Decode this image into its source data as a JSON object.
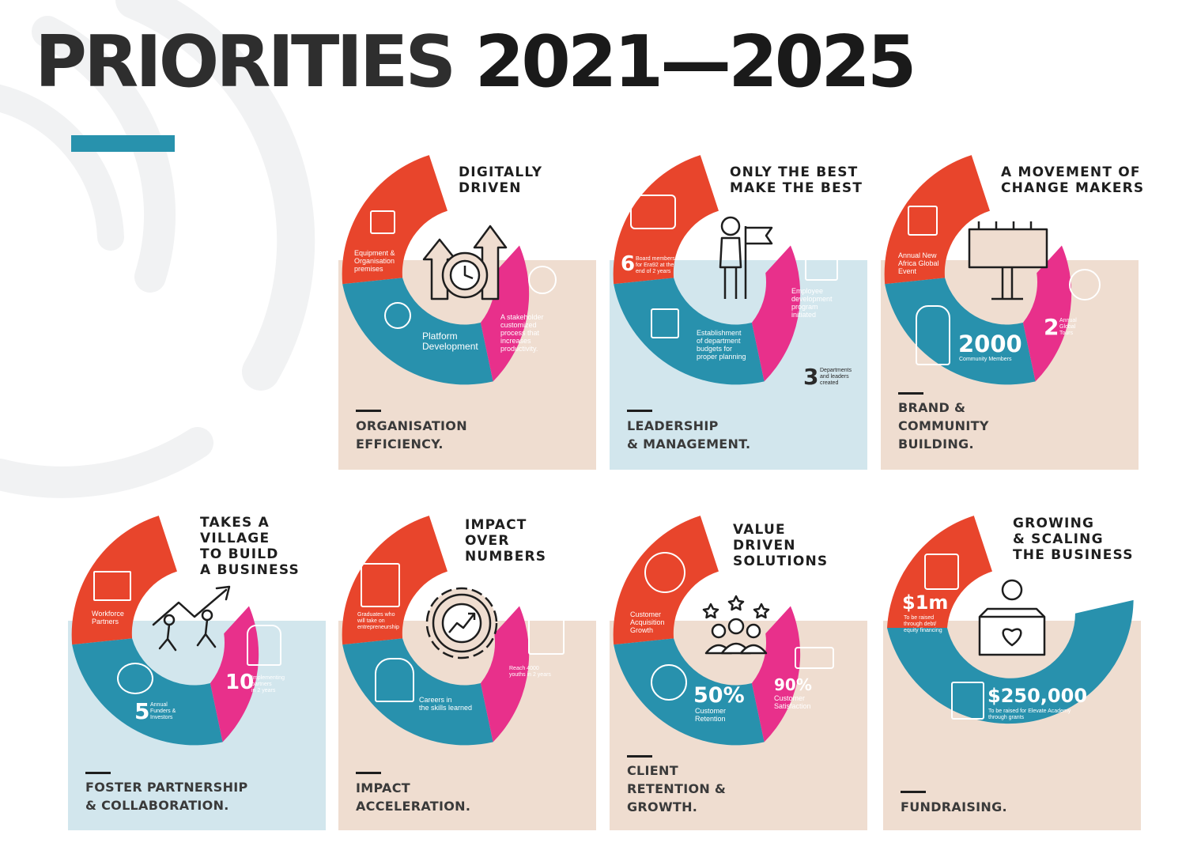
{
  "title": {
    "word": "PRIORITIES",
    "years": "2021—2025"
  },
  "colors": {
    "orange": "#e8452c",
    "teal": "#2891ad",
    "pink": "#e8308b",
    "tan": "#efddd0",
    "light_blue": "#d2e6ed",
    "accent": "#2892ad"
  },
  "cards": {
    "organisation": {
      "title": [
        "DIGITALLY",
        "DRIVEN"
      ],
      "category": [
        "ORGANISATION",
        "EFFICIENCY."
      ],
      "center_icon": "clock-arrows-icon",
      "orange": {
        "icon": "cube-monitor-icon",
        "label": [
          "Equipment &",
          "Organisation",
          "premises"
        ]
      },
      "teal": {
        "icon": "touch-icon",
        "label": [
          "Platform",
          "Development"
        ]
      },
      "pink": {
        "icon": "process-icon",
        "label": [
          "A stakeholder",
          "customized",
          "process that",
          "increases",
          "productivity."
        ]
      }
    },
    "leadership": {
      "title": [
        "ONLY  THE BEST",
        "MAKE THE BEST"
      ],
      "category": [
        "LEADERSHIP",
        "& MANAGEMENT."
      ],
      "center_icon": "person-flag-icon",
      "orange": {
        "icon": "meeting-table-icon",
        "number": "6",
        "label": [
          "Board members",
          "for Era92 at the",
          "end of 2 years"
        ]
      },
      "teal": {
        "icon": "calculator-icon",
        "label": [
          "Establishment",
          "of department",
          "budgets for",
          "proper planning"
        ]
      },
      "pink": {
        "icon": "code-settings-icon",
        "label": [
          "Employee",
          "development",
          "program",
          "initiated"
        ]
      },
      "extra": {
        "number": "3",
        "label": [
          "Departments",
          "and leaders",
          "created"
        ]
      }
    },
    "brand": {
      "title": [
        "A MOVEMENT OF",
        "CHANGE MAKERS"
      ],
      "category": [
        "BRAND &",
        "COMMUNITY",
        "BUILDING."
      ],
      "center_icon": "billboard-icon",
      "orange": {
        "icon": "calendar-icon",
        "label": [
          "Annual New",
          "Africa Global",
          "Event"
        ]
      },
      "teal": {
        "icon": "community-icon",
        "number": "2000",
        "label": [
          "Community Members"
        ]
      },
      "pink": {
        "icon": "globe-pin-icon",
        "number": "2",
        "label": [
          "Annual",
          "Global",
          "Tours"
        ]
      }
    },
    "partnership": {
      "title": [
        "TAKES  A",
        "VILLAGE",
        "TO BUILD",
        "A BUSINESS"
      ],
      "category": [
        "FOSTER PARTNERSHIP",
        "& COLLABORATION."
      ],
      "center_icon": "people-arrow-icon",
      "orange": {
        "icon": "factory-icon",
        "label": [
          "Workforce",
          "Partners"
        ]
      },
      "teal": {
        "icon": "hand-money-icon",
        "number": "5",
        "label": [
          "Annual",
          "Funders &",
          "Investors"
        ]
      },
      "pink": {
        "icon": "group-icon",
        "number": "10",
        "label": [
          "Implementing",
          "partners",
          "in 2 years"
        ]
      }
    },
    "impact": {
      "title": [
        "IMPACT",
        "OVER",
        "NUMBERS"
      ],
      "category": [
        "IMPACT",
        "ACCELERATION."
      ],
      "center_icon": "gear-chart-icon",
      "orange": {
        "icon": "shop-person-icon",
        "label": [
          "Graduates who",
          "will take on",
          "entrepreneurship"
        ]
      },
      "teal": {
        "icon": "worker-clock-icon",
        "label": [
          "Careers in",
          "the skills learned"
        ]
      },
      "pink": {
        "icon": "target-board-icon",
        "label": [
          "Reach 4000",
          "youths in 2 years"
        ]
      }
    },
    "client": {
      "title": [
        "VALUE",
        "DRIVEN",
        "SOLUTIONS"
      ],
      "category": [
        "CLIENT",
        "RETENTION &",
        "GROWTH."
      ],
      "center_icon": "team-stars-icon",
      "orange": {
        "icon": "network-icon",
        "label": [
          "Customer",
          "Acquisition",
          "Growth"
        ]
      },
      "teal": {
        "icon": "presenter-icon",
        "number": "50%",
        "label": [
          "Customer",
          "Retention"
        ]
      },
      "pink": {
        "icon": "rating-icon",
        "number": "90%",
        "label": [
          "Customer",
          "Satisfaction"
        ]
      }
    },
    "fundraising": {
      "title": [
        "GROWING",
        "& SCALING",
        "THE BUSINESS"
      ],
      "category": [
        "FUNDRAISING."
      ],
      "center_icon": "donation-box-icon",
      "orange": {
        "icon": "investment-icon",
        "number": "$1m",
        "label": [
          "To be raised",
          "through debt/",
          "equity financing"
        ]
      },
      "teal": {
        "icon": "grant-certificate-icon",
        "number": "$250,000",
        "label": [
          "To be raised for Elevate Academy",
          "through grants"
        ]
      }
    }
  }
}
